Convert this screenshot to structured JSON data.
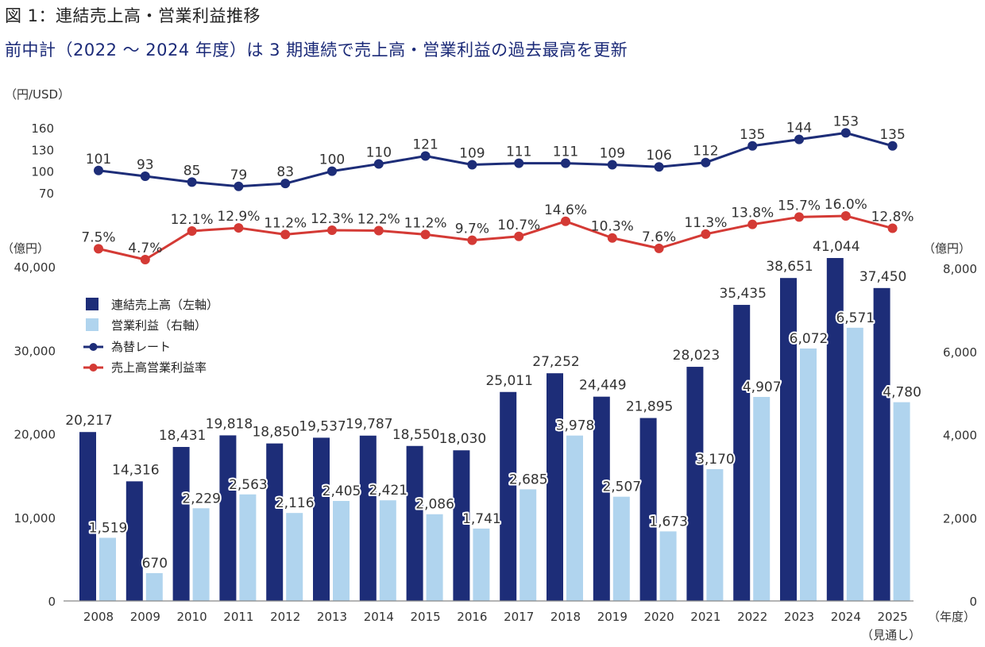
{
  "header": {
    "title": "図 1：連結売上高・営業利益推移",
    "subtitle": "前中計（2022 ～ 2024 年度）は 3 期連続で売上高・営業利益の過去最高を更新"
  },
  "chart_data": {
    "type": "bar",
    "title": "図 1：連結売上高・営業利益推移",
    "subtitle": "前中計（2022 ～ 2024 年度）は 3 期連続で売上高・営業利益の過去最高を更新",
    "categories": [
      "2008",
      "2009",
      "2010",
      "2011",
      "2012",
      "2013",
      "2014",
      "2015",
      "2016",
      "2017",
      "2018",
      "2019",
      "2020",
      "2021",
      "2022",
      "2023",
      "2024",
      "2025"
    ],
    "category_sublabels": {
      "2025": "（見通し）"
    },
    "xlabel": "（年度）",
    "colors": {
      "sales": "#1d2d78",
      "operating_profit": "#b0d4ee",
      "fx_rate": "#1d2d78",
      "margin": "#d43a35",
      "axis": "#888888"
    },
    "series": [
      {
        "name": "連結売上高（左軸）",
        "kind": "bar",
        "axis": "left",
        "values": [
          20217,
          14316,
          18431,
          19818,
          18850,
          19537,
          19787,
          18550,
          18030,
          25011,
          27252,
          24449,
          21895,
          28023,
          35435,
          38651,
          41044,
          37450
        ],
        "labels": [
          "20,217",
          "14,316",
          "18,431",
          "19,818",
          "18,850",
          "19,537",
          "19,787",
          "18,550",
          "18,030",
          "25,011",
          "27,252",
          "24,449",
          "21,895",
          "28,023",
          "35,435",
          "38,651",
          "41,044",
          "37,450"
        ]
      },
      {
        "name": "営業利益（右軸）",
        "kind": "bar",
        "axis": "right",
        "values": [
          1519,
          670,
          2229,
          2563,
          2116,
          2405,
          2421,
          2086,
          1741,
          2685,
          3978,
          2507,
          1673,
          3170,
          4907,
          6072,
          6571,
          4780
        ],
        "labels": [
          "1,519",
          "670",
          "2,229",
          "2,563",
          "2,116",
          "2,405",
          "2,421",
          "2,086",
          "1,741",
          "2,685",
          "3,978",
          "2,507",
          "1,673",
          "3,170",
          "4,907",
          "6,072",
          "6,571",
          "4,780"
        ]
      },
      {
        "name": "為替レート",
        "kind": "line",
        "axis": "fx",
        "values": [
          101,
          93,
          85,
          79,
          83,
          100,
          110,
          121,
          109,
          111,
          111,
          109,
          106,
          112,
          135,
          144,
          153,
          135
        ],
        "labels": [
          "101",
          "93",
          "85",
          "79",
          "83",
          "100",
          "110",
          "121",
          "109",
          "111",
          "111",
          "109",
          "106",
          "112",
          "135",
          "144",
          "153",
          "135"
        ]
      },
      {
        "name": "売上高営業利益率",
        "kind": "line",
        "axis": "margin",
        "values": [
          7.5,
          4.7,
          12.1,
          12.9,
          11.2,
          12.3,
          12.2,
          11.2,
          9.7,
          10.7,
          14.6,
          10.3,
          7.6,
          11.3,
          13.8,
          15.7,
          16.0,
          12.8
        ],
        "labels": [
          "7.5%",
          "4.7%",
          "12.1%",
          "12.9%",
          "11.2%",
          "12.3%",
          "12.2%",
          "11.2%",
          "9.7%",
          "10.7%",
          "14.6%",
          "10.3%",
          "7.6%",
          "11.3%",
          "13.8%",
          "15.7%",
          "16.0%",
          "12.8%"
        ]
      }
    ],
    "axes": {
      "left": {
        "unit": "（億円）",
        "ylim": [
          0,
          40000
        ],
        "ticks": [
          "0",
          "10,000",
          "20,000",
          "30,000",
          "40,000"
        ],
        "tick_values": [
          0,
          10000,
          20000,
          30000,
          40000
        ]
      },
      "right": {
        "unit": "（億円）",
        "ylim": [
          0,
          8000
        ],
        "ticks": [
          "0",
          "2,000",
          "4,000",
          "6,000",
          "8,000"
        ],
        "tick_values": [
          0,
          2000,
          4000,
          6000,
          8000
        ]
      },
      "fx": {
        "unit": "（円/USD）",
        "ylim": [
          70,
          160
        ],
        "ticks": [
          "70",
          "100",
          "130",
          "160"
        ],
        "tick_values": [
          70,
          100,
          130,
          160
        ]
      }
    },
    "legend": {
      "placement": "upper-left",
      "items": [
        "連結売上高（左軸）",
        "営業利益（右軸）",
        "為替レート",
        "売上高営業利益率"
      ]
    },
    "grid": false
  }
}
